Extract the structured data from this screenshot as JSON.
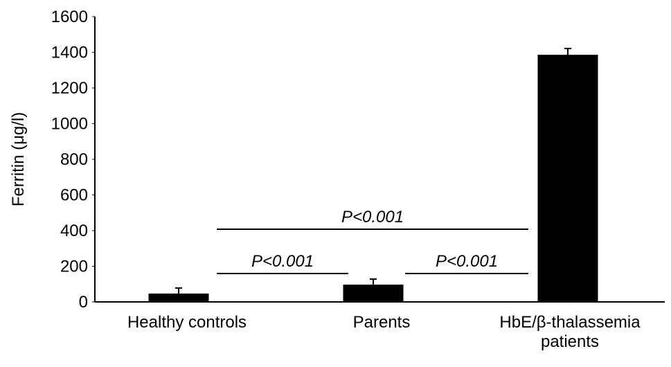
{
  "chart_data": {
    "type": "bar",
    "y_label": "Ferritin (μg/l)",
    "categories": [
      "Healthy controls",
      "Parents",
      "HbE/β-thalassemia patients"
    ],
    "values": [
      47,
      97,
      1386
    ],
    "errors": [
      31,
      31,
      35
    ],
    "color": "#000000",
    "ylim": [
      0,
      1600
    ],
    "yticks": [
      0,
      200,
      400,
      600,
      800,
      1000,
      1200,
      1400,
      1600
    ],
    "grid": false,
    "annotations": [
      "P<0.001",
      "P<0.001",
      "P<0.001"
    ]
  }
}
